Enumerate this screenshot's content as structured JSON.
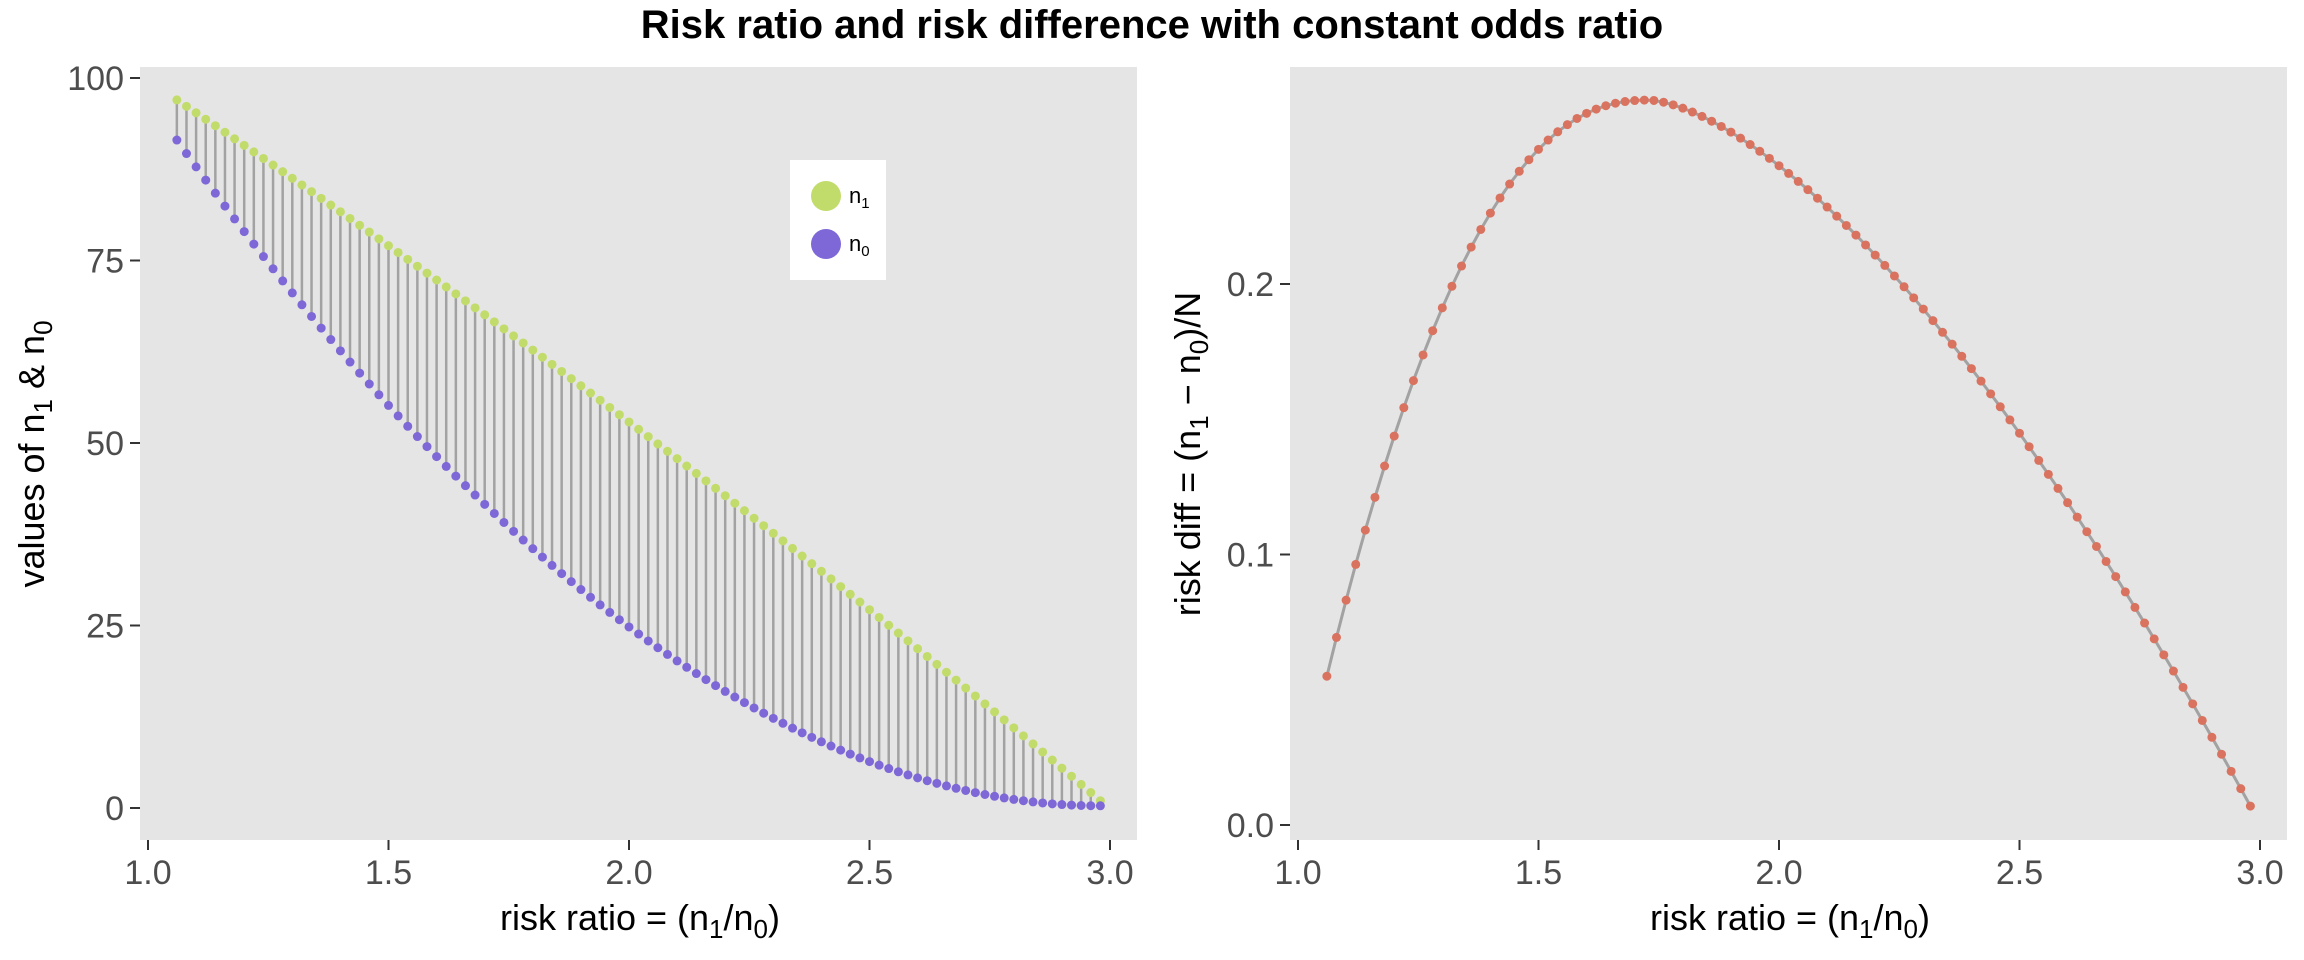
{
  "figure": {
    "title": "Risk ratio and risk difference with constant odds ratio",
    "colors": {
      "panel_background": "#e5e5e5",
      "n1": "#c2dc6b",
      "n0": "#7e67d6",
      "segment": "#a2a2a2",
      "risk_diff_line": "#a2a2a2",
      "risk_diff_point": "#d9735f"
    }
  },
  "chart_data": [
    {
      "type": "scatter",
      "panel": "left",
      "title": "",
      "xlabel": "risk ratio =  (n1/n0)",
      "ylabel": "values of n1 & n0",
      "xlim": [
        1.0,
        3.0
      ],
      "ylim": [
        0,
        100
      ],
      "x_ticks": [
        "1.0",
        "1.5",
        "2.0",
        "2.5",
        "3.0"
      ],
      "y_ticks": [
        "0",
        "25",
        "50",
        "75",
        "100"
      ],
      "grid": false,
      "legend": {
        "placement": "top-right",
        "entries": [
          "n1",
          "n0"
        ]
      },
      "x_range": {
        "start": 1.06,
        "end": 2.98,
        "step": 0.02
      },
      "series": [
        {
          "name": "n1",
          "y_formula": "n1 = n0 * RR where n0 = (1 - RR/OR)/(1 - 1/OR) style constant-odds curve",
          "start": 97.0,
          "end": 1.0
        },
        {
          "name": "n0",
          "start": 91.5,
          "end": 0.3
        }
      ],
      "segments": "vertical line from n0 to n1 at each x"
    },
    {
      "type": "line",
      "panel": "right",
      "title": "",
      "xlabel": "risk ratio = (n1/n0)",
      "ylabel": "risk diff = (n1 − n0)/N",
      "xlim": [
        1.0,
        3.0
      ],
      "ylim": [
        0.0,
        0.27
      ],
      "x_ticks": [
        "1.0",
        "1.5",
        "2.0",
        "2.5",
        "3.0"
      ],
      "y_ticks": [
        "0.0",
        "0.1",
        "0.2"
      ],
      "grid": false,
      "peak": {
        "x": 1.73,
        "y": 0.268
      },
      "start": {
        "x": 1.06,
        "y": 0.055
      },
      "end": {
        "x": 2.98,
        "y": 0.007
      }
    }
  ]
}
